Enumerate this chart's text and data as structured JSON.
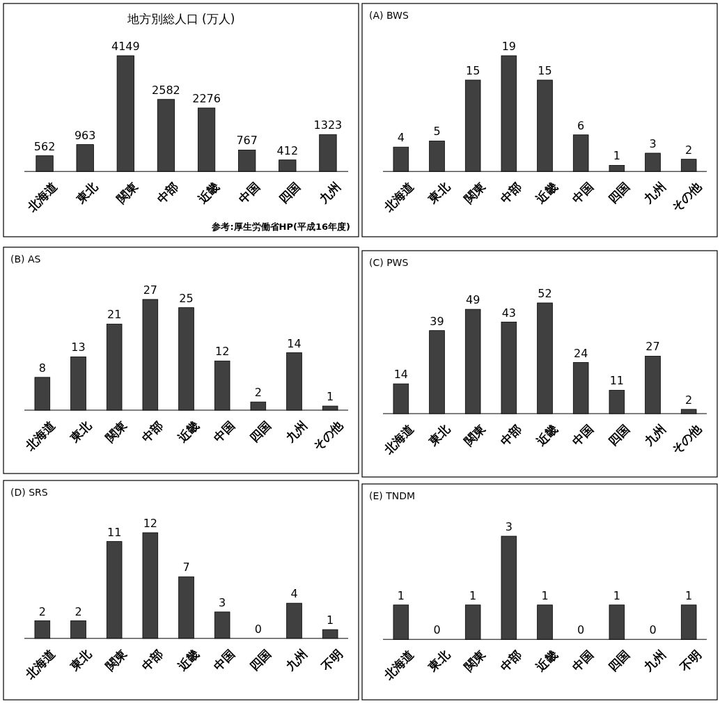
{
  "chart_data": [
    {
      "type": "bar",
      "title": "地方別総人口 (万人)",
      "categories": [
        "北海道",
        "東北",
        "関東",
        "中部",
        "近畿",
        "中国",
        "四国",
        "九州"
      ],
      "values": [
        562,
        963,
        4149,
        2582,
        2276,
        767,
        412,
        1323
      ],
      "color": "#404040",
      "data_labels": true,
      "annotations": [
        "参考:厚生労働省HP(平成16年度)"
      ]
    },
    {
      "type": "bar",
      "title": "(A) BWS",
      "categories": [
        "北海道",
        "東北",
        "関東",
        "中部",
        "近畿",
        "中国",
        "四国",
        "九州",
        "その他"
      ],
      "values": [
        4,
        5,
        15,
        19,
        15,
        6,
        1,
        3,
        2
      ],
      "color": "#404040",
      "data_labels": true
    },
    {
      "type": "bar",
      "title": "(B) AS",
      "categories": [
        "北海道",
        "東北",
        "関東",
        "中部",
        "近畿",
        "中国",
        "四国",
        "九州",
        "その他"
      ],
      "values": [
        8,
        13,
        21,
        27,
        25,
        12,
        2,
        14,
        1
      ],
      "color": "#404040",
      "data_labels": true
    },
    {
      "type": "bar",
      "title": "(C) PWS",
      "categories": [
        "北海道",
        "東北",
        "関東",
        "中部",
        "近畿",
        "中国",
        "四国",
        "九州",
        "その他"
      ],
      "values": [
        14,
        39,
        49,
        43,
        52,
        24,
        11,
        27,
        2
      ],
      "color": "#404040",
      "data_labels": true
    },
    {
      "type": "bar",
      "title": "(D) SRS",
      "categories": [
        "北海道",
        "東北",
        "関東",
        "中部",
        "近畿",
        "中国",
        "四国",
        "九州",
        "不明"
      ],
      "values": [
        2,
        2,
        11,
        12,
        7,
        3,
        0,
        4,
        1
      ],
      "color": "#404040",
      "data_labels": true
    },
    {
      "type": "bar",
      "title": "(E) TNDM",
      "categories": [
        "北海道",
        "東北",
        "関東",
        "中部",
        "近畿",
        "中国",
        "四国",
        "九州",
        "不明"
      ],
      "values": [
        1,
        0,
        1,
        3,
        1,
        0,
        1,
        0,
        1
      ],
      "color": "#404040",
      "data_labels": true
    }
  ]
}
